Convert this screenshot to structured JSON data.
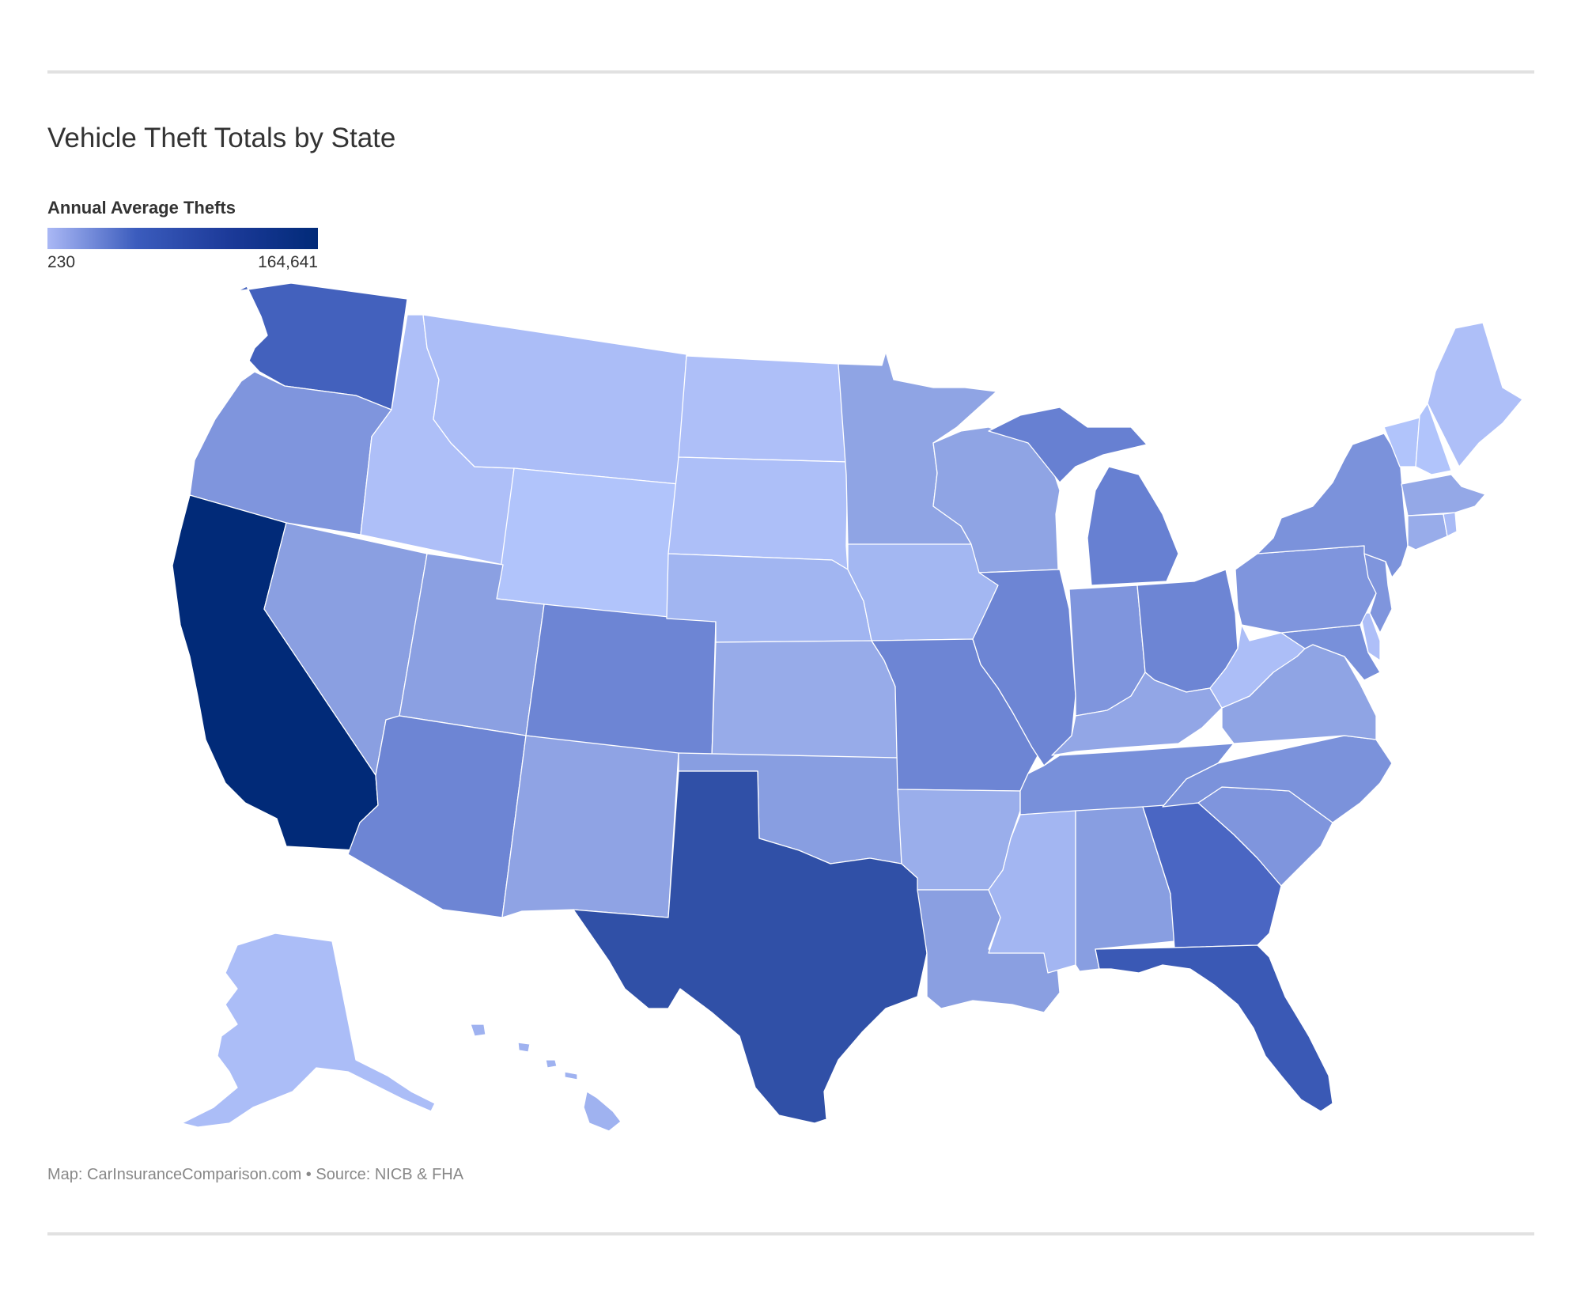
{
  "title": "Vehicle Theft Totals by State",
  "legend": {
    "title": "Annual Average Thefts",
    "min_label": "230",
    "max_label": "164,641",
    "colors": [
      "#aab8f5",
      "#3b5cbd",
      "#1c3a99",
      "#012a78"
    ]
  },
  "footer": {
    "credit": "Map: CarInsuranceComparison.com • Source: NICB & FHA"
  },
  "map": {
    "type": "choropleth",
    "region": "United States",
    "states": [
      {
        "id": "WA",
        "color": "#4361bd"
      },
      {
        "id": "OR",
        "color": "#7f95dd"
      },
      {
        "id": "CA",
        "color": "#012a78"
      },
      {
        "id": "ID",
        "color": "#aebff8"
      },
      {
        "id": "NV",
        "color": "#8a9fe1"
      },
      {
        "id": "MT",
        "color": "#abbdf7"
      },
      {
        "id": "WY",
        "color": "#b1c4fb"
      },
      {
        "id": "UT",
        "color": "#8ba0e2"
      },
      {
        "id": "AZ",
        "color": "#6d85d4"
      },
      {
        "id": "CO",
        "color": "#6d85d4"
      },
      {
        "id": "NM",
        "color": "#8fa3e4"
      },
      {
        "id": "ND",
        "color": "#aebff8"
      },
      {
        "id": "SD",
        "color": "#adbff8"
      },
      {
        "id": "NE",
        "color": "#a1b5f1"
      },
      {
        "id": "KS",
        "color": "#97abe9"
      },
      {
        "id": "OK",
        "color": "#889ee1"
      },
      {
        "id": "TX",
        "color": "#3050a7"
      },
      {
        "id": "MN",
        "color": "#8fa4e4"
      },
      {
        "id": "IA",
        "color": "#a3b7f2"
      },
      {
        "id": "MO",
        "color": "#6d85d4"
      },
      {
        "id": "AR",
        "color": "#9aaeeb"
      },
      {
        "id": "LA",
        "color": "#8a9fe1"
      },
      {
        "id": "WI",
        "color": "#8fa4e4"
      },
      {
        "id": "IL",
        "color": "#6d85d4"
      },
      {
        "id": "MI",
        "color": "#6780d2"
      },
      {
        "id": "IN",
        "color": "#7f95dd"
      },
      {
        "id": "OH",
        "color": "#6d85d4"
      },
      {
        "id": "KY",
        "color": "#92a6e6"
      },
      {
        "id": "TN",
        "color": "#7890da"
      },
      {
        "id": "MS",
        "color": "#a3b6f2"
      },
      {
        "id": "AL",
        "color": "#889ee1"
      },
      {
        "id": "GA",
        "color": "#4a66c3"
      },
      {
        "id": "FL",
        "color": "#3a59b5"
      },
      {
        "id": "SC",
        "color": "#7f95dd"
      },
      {
        "id": "NC",
        "color": "#7b92db"
      },
      {
        "id": "VA",
        "color": "#8fa4e4"
      },
      {
        "id": "WV",
        "color": "#acbef7"
      },
      {
        "id": "PA",
        "color": "#7f95dd"
      },
      {
        "id": "NY",
        "color": "#7b92db"
      },
      {
        "id": "ME",
        "color": "#aebff8"
      },
      {
        "id": "VT",
        "color": "#b1c4fb"
      },
      {
        "id": "NH",
        "color": "#b1c4fb"
      },
      {
        "id": "MA",
        "color": "#94a8e7"
      },
      {
        "id": "CT",
        "color": "#98acea"
      },
      {
        "id": "RI",
        "color": "#a9bbf6"
      },
      {
        "id": "NJ",
        "color": "#7f95dd"
      },
      {
        "id": "DE",
        "color": "#aebff8"
      },
      {
        "id": "MD",
        "color": "#7890da"
      },
      {
        "id": "AK",
        "color": "#abbdf7"
      },
      {
        "id": "HI",
        "color": "#9fb2f0"
      }
    ]
  }
}
